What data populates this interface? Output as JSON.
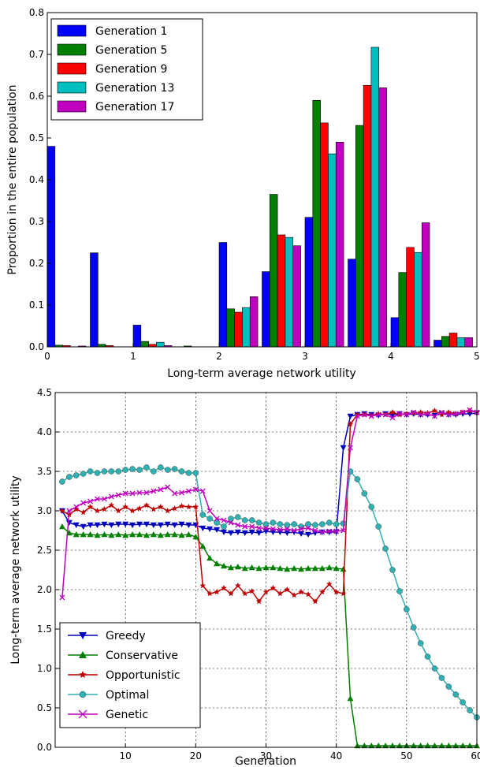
{
  "chart_data": [
    {
      "type": "bar",
      "title": "",
      "xlabel": "Long-term average network utility",
      "ylabel": "Proportion in the entire population",
      "xlim": [
        0,
        5
      ],
      "ylim": [
        0,
        0.8
      ],
      "xticks": [
        0,
        1,
        2,
        3,
        4,
        5
      ],
      "yticks": [
        0.0,
        0.1,
        0.2,
        0.3,
        0.4,
        0.5,
        0.6,
        0.7,
        0.8
      ],
      "bin_starts": [
        0.0,
        0.5,
        1.0,
        1.5,
        2.0,
        2.5,
        3.0,
        3.5,
        4.0,
        4.5
      ],
      "bin_width": 0.5,
      "grid": false,
      "legend_position": "top-left",
      "series": [
        {
          "name": "Generation 1",
          "color": "#0000ff",
          "values": [
            0.48,
            0.225,
            0.052,
            0.0,
            0.25,
            0.18,
            0.31,
            0.21,
            0.07,
            0.016
          ]
        },
        {
          "name": "Generation 5",
          "color": "#007f00",
          "values": [
            0.004,
            0.006,
            0.013,
            0.002,
            0.091,
            0.365,
            0.59,
            0.53,
            0.178,
            0.025
          ]
        },
        {
          "name": "Generation 9",
          "color": "#ff0000",
          "values": [
            0.003,
            0.003,
            0.006,
            0.0,
            0.083,
            0.268,
            0.536,
            0.626,
            0.238,
            0.033
          ]
        },
        {
          "name": "Generation 13",
          "color": "#00bfbf",
          "values": [
            0.0,
            0.0,
            0.011,
            0.0,
            0.094,
            0.262,
            0.462,
            0.717,
            0.226,
            0.022
          ]
        },
        {
          "name": "Generation 17",
          "color": "#bf00bf",
          "values": [
            0.002,
            0.0,
            0.003,
            0.0,
            0.12,
            0.242,
            0.49,
            0.62,
            0.297,
            0.022
          ]
        }
      ]
    },
    {
      "type": "line",
      "title": "",
      "xlabel": "Generation",
      "ylabel": "Long-term average network utility",
      "xlim": [
        0,
        60
      ],
      "ylim": [
        0,
        4.5
      ],
      "xticks": [
        10,
        20,
        30,
        40,
        50,
        60
      ],
      "yticks": [
        0.0,
        0.5,
        1.0,
        1.5,
        2.0,
        2.5,
        3.0,
        3.5,
        4.0,
        4.5
      ],
      "grid": true,
      "legend_position": "bottom-left",
      "series": [
        {
          "name": "Greedy",
          "color": "#0000bf",
          "marker": "triangle-down",
          "values": [
            3.0,
            2.85,
            2.82,
            2.8,
            2.82,
            2.82,
            2.83,
            2.82,
            2.83,
            2.83,
            2.82,
            2.83,
            2.83,
            2.82,
            2.82,
            2.83,
            2.82,
            2.83,
            2.82,
            2.82,
            2.78,
            2.77,
            2.76,
            2.73,
            2.72,
            2.73,
            2.72,
            2.73,
            2.72,
            2.74,
            2.73,
            2.73,
            2.72,
            2.73,
            2.71,
            2.7,
            2.72,
            2.73,
            2.73,
            2.73,
            3.8,
            4.2,
            4.22,
            4.23,
            4.22,
            4.21,
            4.23,
            4.22,
            4.23,
            4.22,
            4.23,
            4.22,
            4.22,
            4.21,
            4.23,
            4.22,
            4.22,
            4.23,
            4.23,
            4.24
          ]
        },
        {
          "name": "Conservative",
          "color": "#007f00",
          "marker": "triangle-up",
          "values": [
            2.8,
            2.72,
            2.7,
            2.7,
            2.7,
            2.69,
            2.7,
            2.69,
            2.7,
            2.69,
            2.7,
            2.7,
            2.69,
            2.7,
            2.69,
            2.7,
            2.7,
            2.69,
            2.7,
            2.67,
            2.55,
            2.4,
            2.33,
            2.3,
            2.28,
            2.29,
            2.27,
            2.28,
            2.27,
            2.28,
            2.28,
            2.27,
            2.26,
            2.27,
            2.26,
            2.27,
            2.27,
            2.27,
            2.28,
            2.27,
            2.26,
            0.62,
            0.02,
            0.02,
            0.02,
            0.02,
            0.02,
            0.02,
            0.02,
            0.02,
            0.02,
            0.02,
            0.02,
            0.02,
            0.02,
            0.02,
            0.02,
            0.02,
            0.02,
            0.02
          ]
        },
        {
          "name": "Opportunistic",
          "color": "#bf0000",
          "marker": "star",
          "values": [
            3.0,
            2.95,
            3.02,
            2.98,
            3.05,
            3.0,
            3.02,
            3.07,
            3.0,
            3.05,
            3.0,
            3.03,
            3.07,
            3.02,
            3.05,
            3.0,
            3.03,
            3.06,
            3.05,
            3.05,
            2.05,
            1.95,
            1.97,
            2.02,
            1.95,
            2.05,
            1.95,
            1.98,
            1.85,
            1.97,
            2.02,
            1.95,
            2.0,
            1.93,
            1.97,
            1.94,
            1.85,
            1.97,
            2.07,
            1.97,
            1.95,
            4.1,
            4.22,
            4.22,
            4.21,
            4.23,
            4.22,
            4.25,
            4.22,
            4.23,
            4.24,
            4.25,
            4.24,
            4.27,
            4.22,
            4.25,
            4.23,
            4.25,
            4.27,
            4.25
          ]
        },
        {
          "name": "Optimal",
          "color": "#30b0b0",
          "marker": "circle",
          "values": [
            3.37,
            3.43,
            3.45,
            3.47,
            3.5,
            3.48,
            3.5,
            3.5,
            3.5,
            3.52,
            3.53,
            3.52,
            3.55,
            3.5,
            3.55,
            3.52,
            3.53,
            3.5,
            3.48,
            3.48,
            2.95,
            2.9,
            2.85,
            2.8,
            2.9,
            2.92,
            2.88,
            2.88,
            2.85,
            2.83,
            2.85,
            2.83,
            2.82,
            2.83,
            2.8,
            2.83,
            2.82,
            2.83,
            2.85,
            2.83,
            2.84,
            3.5,
            3.4,
            3.22,
            3.05,
            2.8,
            2.52,
            2.25,
            1.98,
            1.75,
            1.52,
            1.32,
            1.15,
            1.0,
            0.88,
            0.77,
            0.67,
            0.57,
            0.47,
            0.38
          ]
        },
        {
          "name": "Genetic",
          "color": "#bf00bf",
          "marker": "x",
          "values": [
            1.9,
            3.0,
            3.05,
            3.1,
            3.12,
            3.15,
            3.15,
            3.18,
            3.2,
            3.22,
            3.22,
            3.23,
            3.23,
            3.25,
            3.27,
            3.3,
            3.22,
            3.23,
            3.25,
            3.27,
            3.25,
            3.0,
            2.9,
            2.88,
            2.85,
            2.82,
            2.8,
            2.8,
            2.78,
            2.78,
            2.77,
            2.76,
            2.77,
            2.75,
            2.77,
            2.78,
            2.75,
            2.73,
            2.74,
            2.74,
            2.75,
            3.8,
            4.2,
            4.22,
            4.2,
            4.22,
            4.22,
            4.18,
            4.23,
            4.22,
            4.25,
            4.22,
            4.23,
            4.2,
            4.25,
            4.22,
            4.23,
            4.25,
            4.28,
            4.25
          ]
        }
      ]
    }
  ]
}
